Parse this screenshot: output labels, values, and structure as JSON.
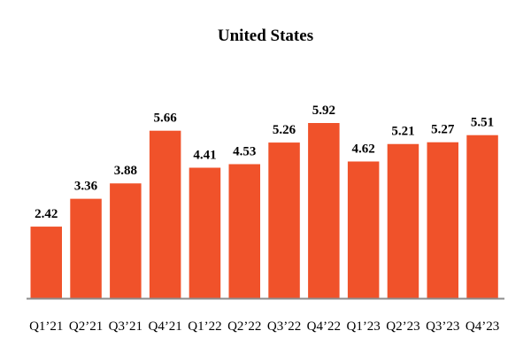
{
  "chart_data": {
    "type": "bar",
    "title": "United States",
    "xlabel": "",
    "ylabel": "",
    "categories": [
      "Q1’21",
      "Q2’21",
      "Q3’21",
      "Q4’21",
      "Q1’22",
      "Q2’22",
      "Q3’22",
      "Q4’22",
      "Q1’23",
      "Q2’23",
      "Q3’23",
      "Q4’23"
    ],
    "values": [
      2.42,
      3.36,
      3.88,
      5.66,
      4.41,
      4.53,
      5.26,
      5.92,
      4.62,
      5.21,
      5.27,
      5.51
    ],
    "value_labels": [
      "2.42",
      "3.36",
      "3.88",
      "5.66",
      "4.41",
      "4.53",
      "5.26",
      "5.92",
      "4.62",
      "5.21",
      "5.27",
      "5.51"
    ],
    "ylim": [
      0,
      5.92
    ],
    "grid": false,
    "legend": "none",
    "colors": {
      "bar": "#F0522A",
      "axis": "#8c8c8c",
      "text": "#000000"
    }
  }
}
